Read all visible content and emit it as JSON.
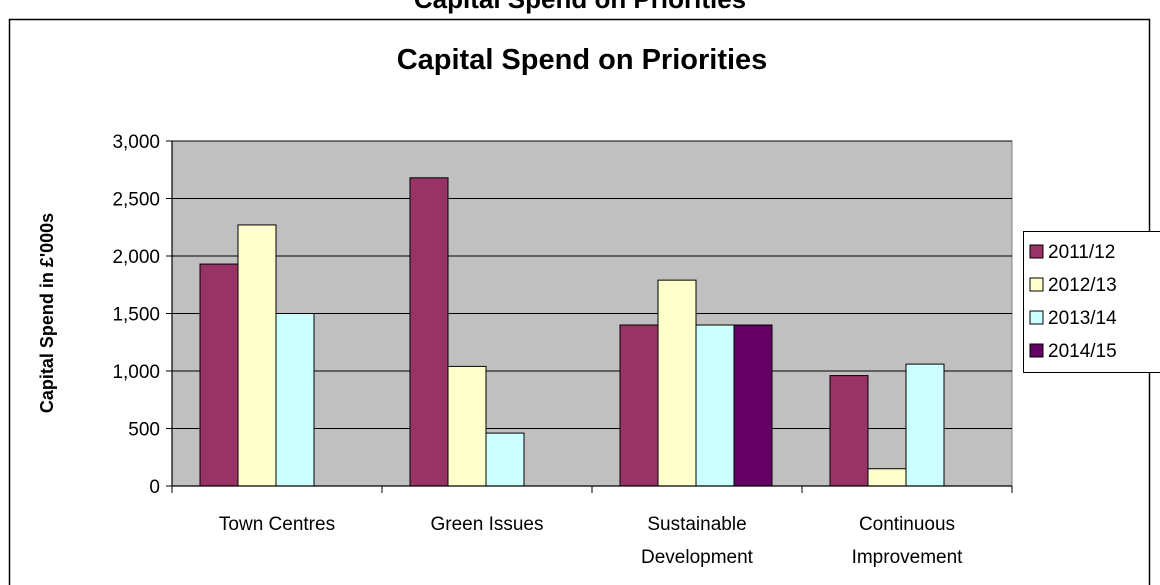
{
  "top_caption": "Capital Spend on Priorities",
  "chart_data": {
    "type": "bar",
    "title": "Capital Spend on Priorities",
    "xlabel": "",
    "ylabel": "Capital Spend in £'000s",
    "ylim": [
      0,
      3000
    ],
    "ytick_labels": [
      "0",
      "500",
      "1,000",
      "1,500",
      "2,000",
      "2,500",
      "3,000"
    ],
    "categories": [
      [
        "Town Centres"
      ],
      [
        "Green Issues"
      ],
      [
        "Sustainable",
        "Development"
      ],
      [
        "Continuous",
        "Improvement"
      ]
    ],
    "series": [
      {
        "name": "2011/12",
        "color": "#993366",
        "values": [
          1930,
          2680,
          1400,
          960
        ]
      },
      {
        "name": "2012/13",
        "color": "#ffffcc",
        "values": [
          2270,
          1040,
          1790,
          150
        ]
      },
      {
        "name": "2013/14",
        "color": "#ccffff",
        "values": [
          1500,
          460,
          1400,
          1060
        ]
      },
      {
        "name": "2014/15",
        "color": "#660066",
        "values": [
          0,
          0,
          1400,
          0
        ]
      }
    ],
    "plot_background": "#c0c0c0",
    "grid": true,
    "legend_position": "right"
  }
}
